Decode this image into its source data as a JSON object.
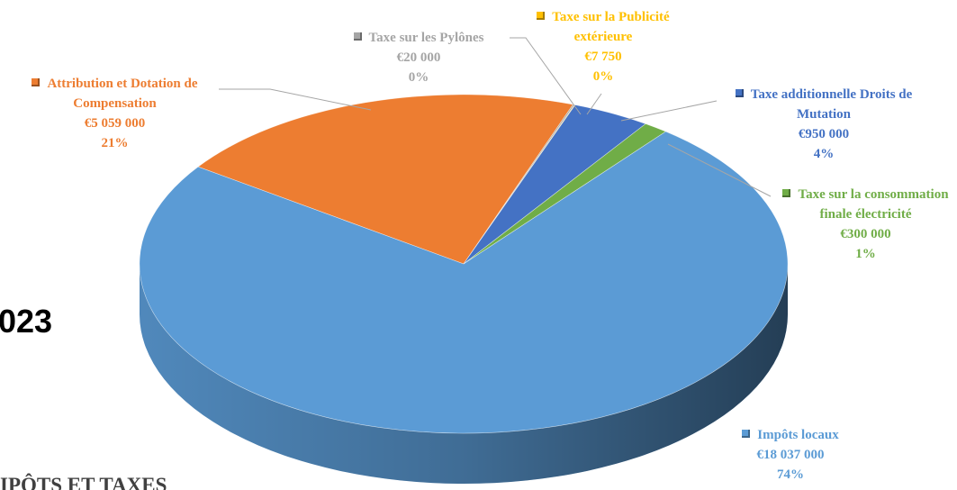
{
  "chart_data": {
    "type": "pie",
    "categories": [
      "Attribution et Dotation de Compensation",
      "Taxe sur les Pylônes",
      "Taxe sur la Publicité extérieure",
      "Taxe additionnelle Droits de Mutation",
      "Taxe sur la consommation finale électricité",
      "Impôts locaux"
    ],
    "values": [
      5059000,
      20000,
      7750,
      950000,
      300000,
      18037000
    ],
    "value_labels": [
      "€5 059 000",
      "€20 000",
      "€7 750",
      "€950 000",
      "€300 000",
      "€18 037 000"
    ],
    "percents": [
      21,
      0,
      0,
      4,
      1,
      74
    ],
    "percent_labels": [
      "21%",
      "0%",
      "0%",
      "4%",
      "1%",
      "74%"
    ],
    "colors": [
      "#ed7d31",
      "#a5a5a5",
      "#ffc000",
      "#4472c4",
      "#70ad47",
      "#5b9bd5"
    ],
    "annotations": [
      "023",
      "IPÔTS ET TAXES"
    ]
  }
}
